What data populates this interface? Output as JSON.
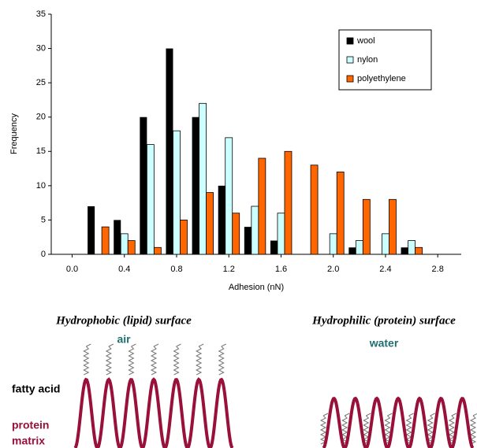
{
  "chart_data": {
    "type": "bar",
    "x_label": "Adhesion (nN)",
    "y_label": "Frequency",
    "x": [
      0.2,
      0.4,
      0.6,
      0.8,
      1.0,
      1.2,
      1.4,
      1.6,
      1.8,
      2.0,
      2.2,
      2.4,
      2.6
    ],
    "series": [
      {
        "name": "wool",
        "color": "#000000",
        "values": [
          7,
          5,
          20,
          30,
          20,
          10,
          4,
          2,
          0,
          0,
          1,
          0,
          1
        ]
      },
      {
        "name": "nylon",
        "color": "#ccffff",
        "values": [
          0,
          3,
          16,
          18,
          22,
          17,
          7,
          6,
          0,
          3,
          2,
          3,
          2
        ]
      },
      {
        "name": "polyethylene",
        "color": "#ff6600",
        "values": [
          4,
          2,
          1,
          5,
          9,
          6,
          14,
          15,
          13,
          12,
          8,
          8,
          1
        ]
      }
    ],
    "xlim": [
      -0.16,
      2.98
    ],
    "xticks": [
      {
        "value": 0,
        "label": "0.0"
      },
      0.4,
      0.8,
      1.2,
      1.6,
      {
        "value": 2,
        "label": "2.0"
      },
      2.4,
      2.8
    ],
    "ylim": [
      0,
      35
    ],
    "yticks": [
      0,
      5,
      10,
      15,
      20,
      25,
      30,
      35
    ],
    "grid": false,
    "legend": "top-right"
  },
  "diagram": {
    "left_title": "Hydrophobic (lipid) surface",
    "left_medium": "air",
    "right_title": "Hydrophilic (protein) surface",
    "right_medium": "water",
    "labels": [
      "fatty acid",
      "protein",
      "matrix"
    ]
  }
}
